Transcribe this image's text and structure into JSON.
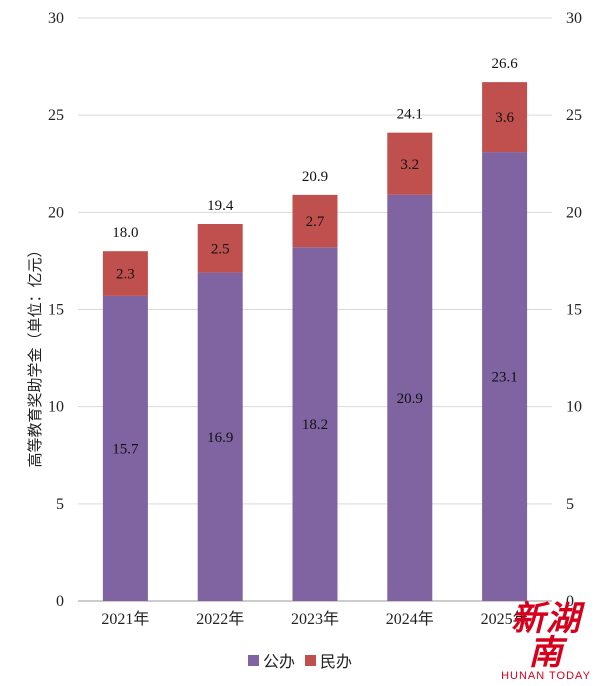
{
  "chart_data": {
    "type": "bar",
    "stacked": true,
    "categories": [
      "2021年",
      "2022年",
      "2023年",
      "2024年",
      "2025年"
    ],
    "series": [
      {
        "name": "公办",
        "values": [
          15.7,
          16.9,
          18.2,
          20.9,
          23.1
        ],
        "color": "#8064a2"
      },
      {
        "name": "民办",
        "values": [
          2.3,
          2.5,
          2.7,
          3.2,
          3.6
        ],
        "color": "#c0504d"
      }
    ],
    "totals": [
      "18.0",
      "19.4",
      "20.9",
      "24.1",
      "26.6"
    ],
    "ylabel": "高等教育奖助学金（单位：亿元）",
    "ylim": [
      0,
      30
    ],
    "yticks": [
      0,
      5,
      10,
      15,
      20,
      25,
      30
    ],
    "grid": true,
    "legend_position": "bottom"
  },
  "legend": {
    "gongban": "公办",
    "minban": "民办",
    "gongban_color": "#8064a2",
    "minban_color": "#c0504d"
  },
  "watermark": {
    "cn": "新湖南",
    "en": "HUNAN TODAY"
  }
}
